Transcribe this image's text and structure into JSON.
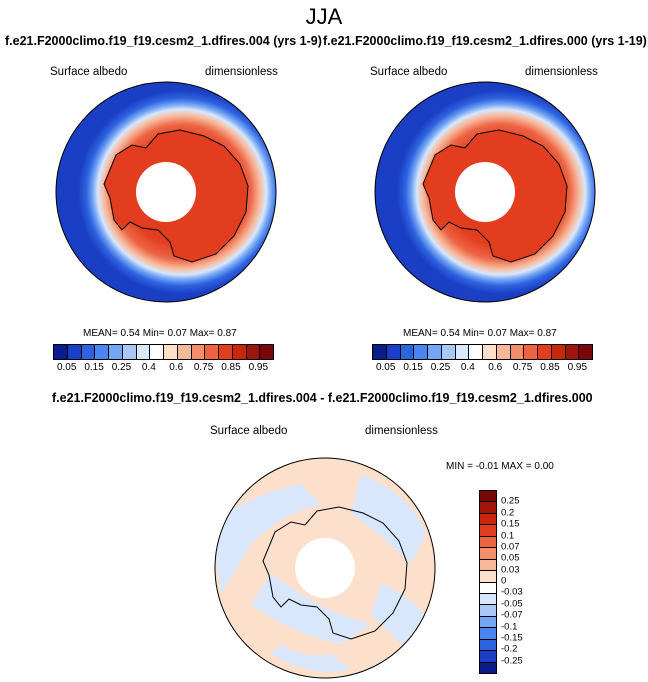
{
  "figure_title": "JJA",
  "left_panel": {
    "title": "f.e21.F2000climo.f19_f19.cesm2_1.dfires.004 (yrs 1-9)",
    "var_label": "Surface albedo",
    "units_label": "dimensionless",
    "stats": "MEAN=   0.54  Min=   0.07  Max=   0.87"
  },
  "right_panel": {
    "title": "f.e21.F2000climo.f19_f19.cesm2_1.dfires.000 (yrs 1-19)",
    "var_label": "Surface albedo",
    "units_label": "dimensionless",
    "stats": "MEAN=   0.54  Min=   0.07  Max=   0.87"
  },
  "diff_panel": {
    "title": "f.e21.F2000climo.f19_f19.cesm2_1.dfires.004 - f.e21.F2000climo.f19_f19.cesm2_1.dfires.000",
    "var_label": "Surface albedo",
    "units_label": "dimensionless",
    "stats": "MIN =  -0.01 MAX =   0.00"
  },
  "colorbar_main": {
    "colors": [
      "#0b1c8c",
      "#1a3fc4",
      "#2e63e0",
      "#4a84ee",
      "#74a6f4",
      "#a9c8f8",
      "#d8e7fb",
      "#ffffff",
      "#fde0cb",
      "#f9b89a",
      "#f48e6d",
      "#ec6444",
      "#e23d1e",
      "#c8260f",
      "#a0150a",
      "#780808"
    ],
    "labels": [
      "0.05",
      "0.15",
      "0.25",
      "0.4",
      "0.6",
      "0.75",
      "0.85",
      "0.95"
    ]
  },
  "colorbar_diff": {
    "colors": [
      "#780808",
      "#a0150a",
      "#c8260f",
      "#e23d1e",
      "#ec6444",
      "#f48e6d",
      "#f9b89a",
      "#fde0cb",
      "#ffffff",
      "#d8e7fb",
      "#a9c8f8",
      "#74a6f4",
      "#4a84ee",
      "#2e63e0",
      "#1a3fc4",
      "#0b1c8c"
    ],
    "labels": [
      "0.25",
      "0.2",
      "0.15",
      "0.1",
      "0.07",
      "0.05",
      "0.03",
      "0",
      "-0.03",
      "-0.05",
      "-0.07",
      "-0.1",
      "-0.15",
      "-0.2",
      "-0.25"
    ]
  }
}
